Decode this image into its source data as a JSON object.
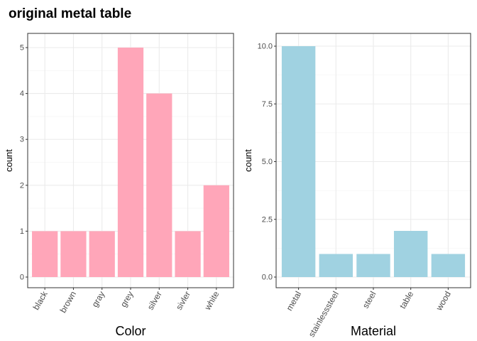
{
  "title": "original metal table",
  "chart_data": [
    {
      "type": "bar",
      "title": "original metal table",
      "categories": [
        "black",
        "brown",
        "gray",
        "grey",
        "silver",
        "sivler",
        "white"
      ],
      "values": [
        1,
        1,
        1,
        5,
        4,
        1,
        2
      ],
      "xlabel": "Color",
      "ylabel": "count",
      "ylim": [
        0,
        5.2
      ],
      "yticks": [
        0,
        1,
        2,
        3,
        4,
        5
      ],
      "ytick_labels": [
        "0",
        "1",
        "2",
        "3",
        "4",
        "5"
      ],
      "grid": true,
      "bar_color": "#FFA6B9"
    },
    {
      "type": "bar",
      "categories": [
        "metal",
        "stainlesssteel",
        "steel",
        "table",
        "wood"
      ],
      "values": [
        10,
        1,
        1,
        2,
        1
      ],
      "xlabel": "Material",
      "ylabel": "count",
      "ylim": [
        0,
        10.5
      ],
      "yticks": [
        0,
        2.5,
        5,
        7.5,
        10
      ],
      "ytick_labels": [
        "0.0",
        "2.5",
        "5.0",
        "7.5",
        "10.0"
      ],
      "grid": true,
      "bar_color": "#A0D2E1"
    }
  ]
}
